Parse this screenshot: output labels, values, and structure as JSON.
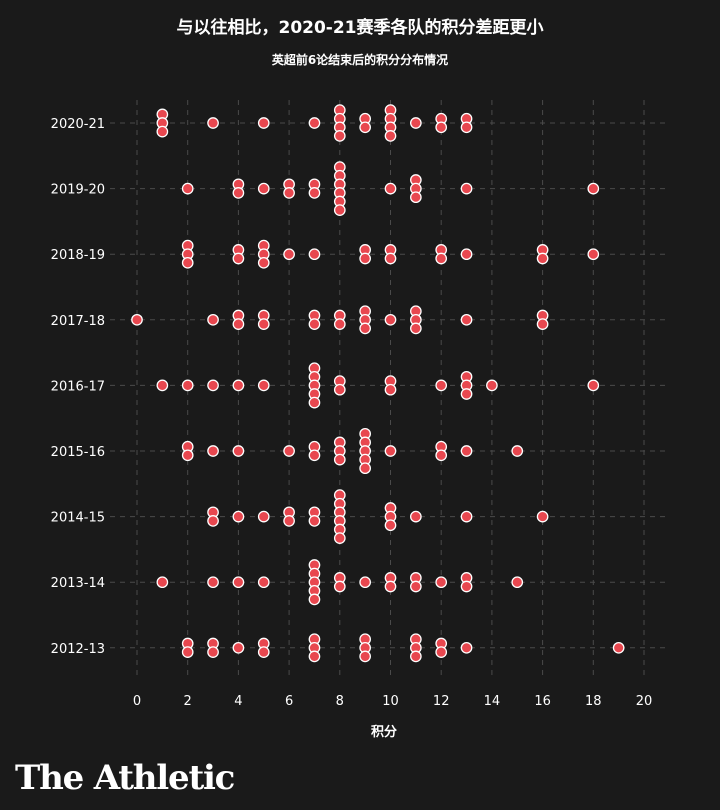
{
  "chart_data": {
    "type": "scatter",
    "title": "与以往相比，2020-21赛季各队的积分差距更小",
    "subtitle": "英超前6论结束后的积分分布情况",
    "xlabel": "积分",
    "xlim": [
      0,
      20
    ],
    "xticks": [
      0,
      2,
      4,
      6,
      8,
      10,
      12,
      14,
      16,
      18,
      20
    ],
    "grid": true,
    "point_color": "#e8474f",
    "seasons": [
      {
        "label": "2020-21",
        "points": [
          1,
          1,
          1,
          3,
          5,
          7,
          8,
          8,
          8,
          8,
          9,
          9,
          10,
          10,
          10,
          10,
          11,
          12,
          12,
          13,
          13
        ]
      },
      {
        "label": "2019-20",
        "points": [
          2,
          4,
          4,
          5,
          6,
          6,
          7,
          7,
          8,
          8,
          8,
          8,
          8,
          8,
          10,
          11,
          11,
          11,
          13,
          18
        ]
      },
      {
        "label": "2018-19",
        "points": [
          2,
          2,
          2,
          4,
          4,
          5,
          5,
          5,
          6,
          7,
          9,
          9,
          10,
          10,
          12,
          12,
          13,
          16,
          16,
          18
        ]
      },
      {
        "label": "2017-18",
        "points": [
          0,
          3,
          4,
          4,
          5,
          5,
          7,
          7,
          8,
          8,
          9,
          9,
          9,
          10,
          11,
          11,
          11,
          13,
          16,
          16
        ]
      },
      {
        "label": "2016-17",
        "points": [
          1,
          2,
          3,
          4,
          5,
          7,
          7,
          7,
          7,
          7,
          8,
          8,
          10,
          10,
          12,
          13,
          13,
          13,
          14,
          18
        ]
      },
      {
        "label": "2015-16",
        "points": [
          2,
          2,
          3,
          4,
          6,
          7,
          7,
          8,
          8,
          8,
          9,
          9,
          9,
          9,
          9,
          10,
          12,
          12,
          13,
          15
        ]
      },
      {
        "label": "2014-15",
        "points": [
          3,
          3,
          4,
          5,
          6,
          6,
          7,
          7,
          8,
          8,
          8,
          8,
          8,
          8,
          10,
          10,
          10,
          11,
          13,
          16
        ]
      },
      {
        "label": "2013-14",
        "points": [
          1,
          3,
          4,
          5,
          7,
          7,
          7,
          7,
          7,
          8,
          8,
          9,
          10,
          10,
          11,
          11,
          12,
          13,
          13,
          15
        ]
      },
      {
        "label": "2012-13",
        "points": [
          2,
          2,
          3,
          3,
          4,
          5,
          5,
          7,
          7,
          7,
          9,
          9,
          9,
          11,
          11,
          11,
          12,
          12,
          13,
          19
        ]
      }
    ]
  },
  "branding": {
    "logo_text": "The Athletic"
  }
}
